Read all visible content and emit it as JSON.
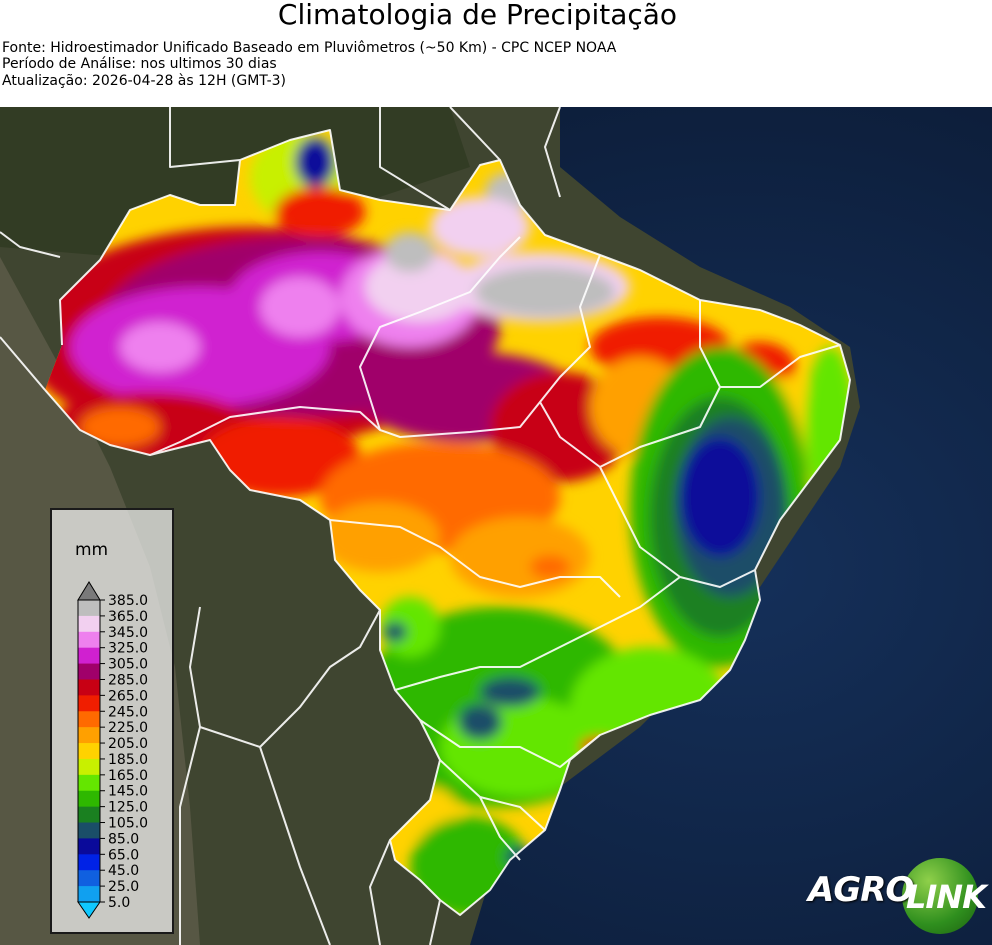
{
  "header": {
    "title": "Climatologia de Precipitação",
    "source": "Fonte: Hidroestimador Unificado Baseado em Pluviômetros (~50 Km) - CPC NCEP NOAA",
    "period": "Período de Análise: nos ultimos 30 dias",
    "updated": "Atualização: 2026-04-28 às 12H (GMT-3)"
  },
  "legend": {
    "unit": "mm",
    "levels": [
      "385.0",
      "365.0",
      "345.0",
      "325.0",
      "305.0",
      "285.0",
      "265.0",
      "245.0",
      "225.0",
      "205.0",
      "185.0",
      "165.0",
      "145.0",
      "125.0",
      "105.0",
      "85.0",
      "65.0",
      "45.0",
      "25.0",
      "5.0"
    ],
    "colors": [
      "#bebebe",
      "#f2d0f0",
      "#ee80ee",
      "#d020d0",
      "#a0006a",
      "#c80014",
      "#f01e00",
      "#ff6a00",
      "#ffa000",
      "#ffd200",
      "#c8f000",
      "#64e600",
      "#2eb800",
      "#1a8020",
      "#1a4e68",
      "#0a0a9a",
      "#0022e6",
      "#1060e0",
      "#10a0f0"
    ],
    "arrow_top_color": "#7a7a7a",
    "arrow_bottom_color": "#10c8ff"
  },
  "logo": {
    "part1": "AGRO",
    "part2": "LINK"
  },
  "map": {
    "background": "satellite",
    "ocean_color": "#0d1e3a",
    "land_color": "#3a3f2a",
    "border_color": "#ffffff"
  }
}
